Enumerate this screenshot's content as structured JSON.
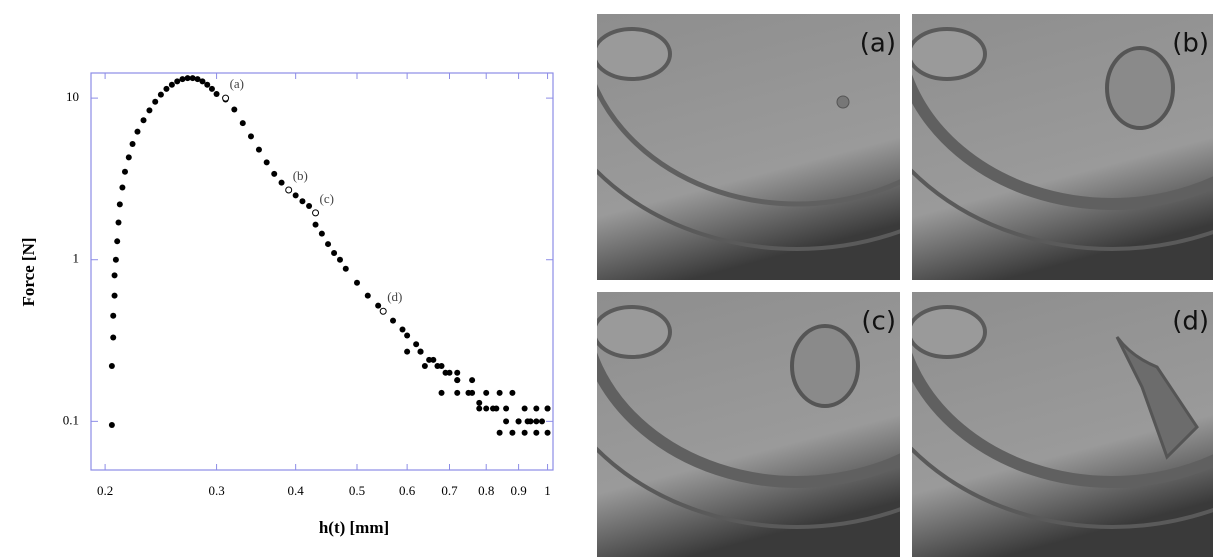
{
  "chart_data": {
    "type": "scatter",
    "xlabel": "h(t) [mm]",
    "ylabel": "Force [N]",
    "xlog": true,
    "ylog": true,
    "xlim": [
      0.19,
      1.02
    ],
    "ylim": [
      0.05,
      14.3
    ],
    "xticks": [
      0.2,
      0.3,
      0.4,
      0.5,
      0.6,
      0.7,
      0.8,
      0.9,
      1
    ],
    "yticks": [
      0.1,
      1,
      10
    ],
    "box_color": "#8c8ce6",
    "series": [
      {
        "color": "#000000",
        "x": [
          0.205,
          0.205,
          0.206,
          0.206,
          0.207,
          0.207,
          0.208,
          0.209,
          0.21,
          0.211,
          0.213,
          0.215,
          0.218,
          0.221,
          0.225,
          0.23,
          0.235,
          0.24,
          0.245,
          0.25,
          0.255,
          0.26,
          0.265,
          0.27,
          0.275,
          0.28,
          0.285,
          0.29,
          0.295,
          0.3,
          0.31,
          0.32,
          0.33,
          0.34,
          0.35,
          0.36,
          0.37,
          0.38,
          0.39,
          0.4,
          0.41,
          0.42,
          0.43,
          0.43,
          0.44,
          0.45,
          0.46,
          0.47,
          0.48,
          0.5,
          0.52,
          0.54,
          0.55,
          0.57,
          0.59,
          0.6,
          0.62,
          0.63,
          0.65,
          0.67,
          0.7,
          0.72,
          0.75,
          0.78,
          0.8,
          0.83,
          0.86,
          0.9,
          0.93,
          0.96,
          1.0,
          0.64,
          0.68,
          0.72,
          0.76,
          0.6,
          0.63,
          0.66,
          0.69,
          0.72,
          0.68,
          0.72,
          0.76,
          0.8,
          0.84,
          0.88,
          0.92,
          0.96,
          1.0,
          0.78,
          0.82,
          0.86,
          0.9,
          0.94,
          0.98,
          0.84,
          0.88,
          0.92,
          0.96,
          1.0
        ],
        "values": [
          0.095,
          0.22,
          0.33,
          0.45,
          0.6,
          0.8,
          1.0,
          1.3,
          1.7,
          2.2,
          2.8,
          3.5,
          4.3,
          5.2,
          6.2,
          7.3,
          8.4,
          9.5,
          10.5,
          11.4,
          12.1,
          12.7,
          13.1,
          13.3,
          13.3,
          13.1,
          12.7,
          12.1,
          11.4,
          10.6,
          9.8,
          8.5,
          7.0,
          5.8,
          4.8,
          4.0,
          3.4,
          3.0,
          2.7,
          2.5,
          2.3,
          2.15,
          1.95,
          1.65,
          1.45,
          1.25,
          1.1,
          1.0,
          0.88,
          0.72,
          0.6,
          0.52,
          0.48,
          0.42,
          0.37,
          0.34,
          0.3,
          0.27,
          0.24,
          0.22,
          0.2,
          0.18,
          0.15,
          0.13,
          0.12,
          0.12,
          0.12,
          0.1,
          0.1,
          0.1,
          0.12,
          0.22,
          0.22,
          0.18,
          0.18,
          0.27,
          0.27,
          0.24,
          0.2,
          0.2,
          0.15,
          0.15,
          0.15,
          0.15,
          0.15,
          0.15,
          0.12,
          0.12,
          0.12,
          0.12,
          0.12,
          0.1,
          0.1,
          0.1,
          0.1,
          0.085,
          0.085,
          0.085,
          0.085,
          0.085
        ]
      }
    ],
    "annotations": [
      {
        "text": "(a)",
        "x": 0.31,
        "y": 10
      },
      {
        "text": "(b)",
        "x": 0.39,
        "y": 2.7
      },
      {
        "text": "(c)",
        "x": 0.43,
        "y": 1.95
      },
      {
        "text": "(d)",
        "x": 0.55,
        "y": 0.48
      }
    ]
  },
  "panels": [
    "(a)",
    "(b)",
    "(c)",
    "(d)"
  ]
}
